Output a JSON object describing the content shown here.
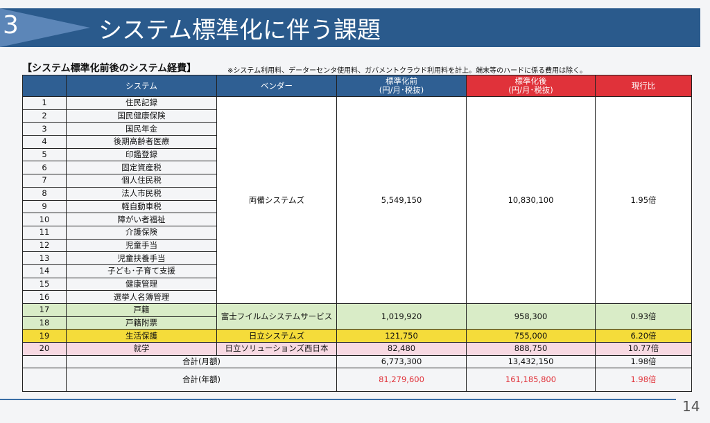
{
  "header": {
    "number": "3",
    "title": "システム標準化に伴う課題"
  },
  "section": {
    "title": "【システム標準化前後のシステム経費】",
    "note": "※システム利用料、データーセンタ使用料、ガバメントクラウド利用料を計上。端末等のハードに係る費用は除く。"
  },
  "table": {
    "columns": {
      "system": "システム",
      "vendor": "ベンダー",
      "before": {
        "line1": "標準化前",
        "line2": "(円/月･税抜)"
      },
      "after": {
        "line1": "標準化後",
        "line2": "(円/月･税抜)"
      },
      "ratio": "現行比"
    },
    "rows": [
      [
        "1",
        "住民記録"
      ],
      [
        "2",
        "国民健康保険"
      ],
      [
        "3",
        "国民年金"
      ],
      [
        "4",
        "後期高齢者医療"
      ],
      [
        "5",
        "印鑑登録"
      ],
      [
        "6",
        "固定資産税"
      ],
      [
        "7",
        "個人住民税"
      ],
      [
        "8",
        "法人市民税"
      ],
      [
        "9",
        "軽自動車税"
      ],
      [
        "10",
        "障がい者福祉"
      ],
      [
        "11",
        "介護保険"
      ],
      [
        "12",
        "児童手当"
      ],
      [
        "13",
        "児童扶養手当"
      ],
      [
        "14",
        "子ども･子育て支援"
      ],
      [
        "15",
        "健康管理"
      ],
      [
        "16",
        "選挙人名簿管理"
      ],
      [
        "17",
        "戸籍"
      ],
      [
        "18",
        "戸籍附票"
      ],
      [
        "19",
        "生活保護"
      ],
      [
        "20",
        "就学"
      ]
    ],
    "groups": [
      {
        "vendor": "両備システムズ",
        "before": "5,549,150",
        "after": "10,830,100",
        "ratio": "1.95倍"
      },
      {
        "vendor": "富士フイルムシステムサービス",
        "before": "1,019,920",
        "after": "958,300",
        "ratio": "0.93倍"
      },
      {
        "vendor": "日立システムズ",
        "before": "121,750",
        "after": "755,000",
        "ratio": "6.20倍"
      },
      {
        "vendor": "日立ソリューションズ西日本",
        "before": "82,480",
        "after": "888,750",
        "ratio": "10.77倍"
      }
    ],
    "totals": [
      {
        "label": "合計(月額)",
        "before": "6,773,300",
        "after": "13,432,150",
        "ratio": "1.98倍"
      },
      {
        "label": "合計(年額)",
        "before": "81,279,600",
        "after": "161,185,800",
        "ratio": "1.98倍"
      }
    ]
  },
  "page_number": "14"
}
